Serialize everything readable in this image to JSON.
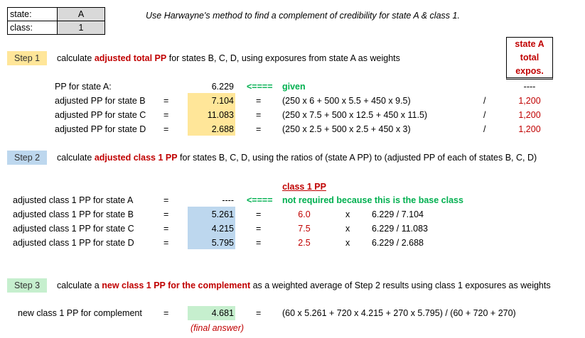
{
  "inputs": {
    "state_label": "state:",
    "state_value": "A",
    "class_label": "class:",
    "class_value": "1"
  },
  "instruction": "Use Harwayne's method to find a complement of credibility for state A & class 1.",
  "expos_header": {
    "line1": "state A",
    "line2": "total",
    "line3": "expos."
  },
  "step1": {
    "label": "Step 1",
    "text_before": "calculate",
    "highlight": "adjusted total PP",
    "text_after": "for states B, C, D, using exposures from state A as weights",
    "given_row": {
      "label": "PP for state A:",
      "value": "6.229",
      "arrow": "<====",
      "note": "given",
      "expos": "----"
    },
    "rows": [
      {
        "label": "adjusted PP for state B",
        "eq": "=",
        "value": "7.104",
        "eq2": "=",
        "formula": "(250 x 6  +  500 x 5.5  +  450 x 9.5)",
        "slash": "/",
        "expos": "1,200"
      },
      {
        "label": "adjusted PP for state C",
        "eq": "=",
        "value": "11.083",
        "eq2": "=",
        "formula": "(250 x 7.5  +  500 x 12.5  +  450 x 11.5)",
        "slash": "/",
        "expos": "1,200"
      },
      {
        "label": "adjusted PP for state D",
        "eq": "=",
        "value": "2.688",
        "eq2": "=",
        "formula": "(250 x 2.5  +  500 x 2.5  +  450 x 3)",
        "slash": "/",
        "expos": "1,200"
      }
    ]
  },
  "step2": {
    "label": "Step 2",
    "text_before": "calculate",
    "highlight": "adjusted class 1 PP",
    "text_after": "for states B, C, D, using the ratios of (state A PP) to (adjusted PP of each of states B, C, D)",
    "col_header": "class 1 PP",
    "base_row": {
      "label": "adjusted class 1 PP for state A",
      "eq": "=",
      "value": "----",
      "arrow": "<====",
      "note": "not required because this is the base class"
    },
    "rows": [
      {
        "label": "adjusted class 1 PP for state B",
        "eq": "=",
        "value": "5.261",
        "eq2": "=",
        "pp": "6.0",
        "x": "x",
        "ratio": "6.229 / 7.104"
      },
      {
        "label": "adjusted class 1 PP for state C",
        "eq": "=",
        "value": "4.215",
        "eq2": "=",
        "pp": "7.5",
        "x": "x",
        "ratio": "6.229 / 11.083"
      },
      {
        "label": "adjusted class 1 PP for state D",
        "eq": "=",
        "value": "5.795",
        "eq2": "=",
        "pp": "2.5",
        "x": "x",
        "ratio": "6.229 / 2.688"
      }
    ]
  },
  "step3": {
    "label": "Step 3",
    "text_before": "calculate a",
    "highlight": "new class 1 PP for the complement",
    "text_after": "as a weighted average of Step 2 results using class 1 exposures as weights",
    "row": {
      "label": "new class 1 PP for complement",
      "eq": "=",
      "value": "4.681",
      "eq2": "=",
      "formula": "(60 x 5.261  +  720 x 4.215  +  270 x 5.795) / (60 + 720 + 270)"
    },
    "final_note": "(final answer)"
  }
}
